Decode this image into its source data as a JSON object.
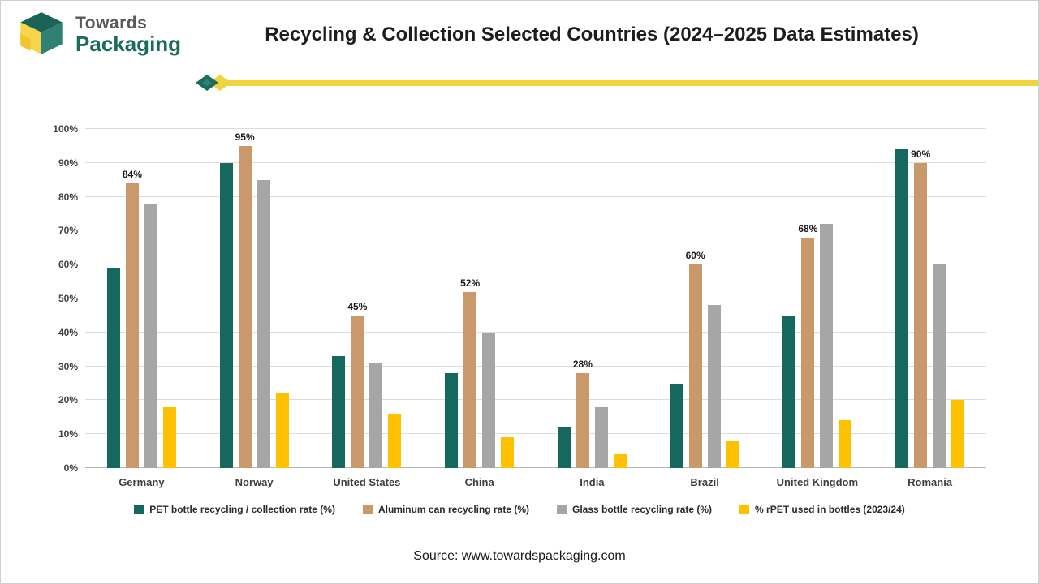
{
  "header": {
    "brand_top": "Towards",
    "brand_bottom": "Packaging",
    "title": "Recycling & Collection Selected Countries (2024–2025 Data Estimates)"
  },
  "chart_data": {
    "type": "bar",
    "title": "Recycling & Collection Selected Countries (2024–2025 Data Estimates)",
    "categories": [
      "Germany",
      "Norway",
      "United States",
      "China",
      "India",
      "Brazil",
      "United Kingdom",
      "Romania"
    ],
    "series": [
      {
        "name": "PET bottle recycling / collection rate (%)",
        "color": "#15685d",
        "values": [
          59,
          90,
          33,
          28,
          12,
          25,
          45,
          94
        ],
        "show_labels": false
      },
      {
        "name": "Aluminum can recycling rate (%)",
        "color": "#c9996b",
        "values": [
          84,
          95,
          45,
          52,
          28,
          60,
          68,
          90
        ],
        "show_labels": true
      },
      {
        "name": "Glass bottle recycling rate (%)",
        "color": "#a6a6a6",
        "values": [
          78,
          85,
          31,
          40,
          18,
          48,
          72,
          60
        ],
        "show_labels": false
      },
      {
        "name": "% rPET used in bottles (2023/24)",
        "color": "#ffc000",
        "values": [
          18,
          22,
          16,
          9,
          4,
          8,
          14,
          20
        ],
        "show_labels": false
      }
    ],
    "xlabel": "",
    "ylabel": "",
    "ylim": [
      0,
      100
    ],
    "ytick_step": 10,
    "ytick_suffix": "%",
    "grid": true,
    "legend_position": "bottom"
  },
  "footer": {
    "source": "Source: www.towardspackaging.com"
  }
}
